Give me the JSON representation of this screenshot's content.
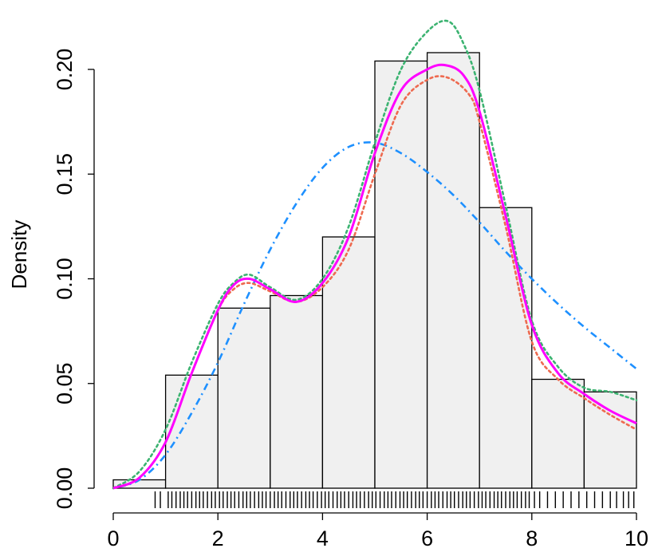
{
  "chart_data": {
    "type": "histogram",
    "title": "",
    "xlabel": "",
    "ylabel": "Density",
    "xlim": [
      0,
      10
    ],
    "ylim": [
      0,
      0.2
    ],
    "x_ticks": [
      0,
      2,
      4,
      6,
      8,
      10
    ],
    "x_tick_labels": [
      "0",
      "2",
      "4",
      "6",
      "8",
      "10"
    ],
    "y_ticks": [
      0,
      0.05,
      0.1,
      0.15,
      0.2
    ],
    "y_tick_labels": [
      "0.00",
      "0.05",
      "0.10",
      "0.15",
      "0.20"
    ],
    "bins": [
      {
        "x0": 0,
        "x1": 1,
        "density": 0.004
      },
      {
        "x0": 1,
        "x1": 2,
        "density": 0.054
      },
      {
        "x0": 2,
        "x1": 3,
        "density": 0.086
      },
      {
        "x0": 3,
        "x1": 4,
        "density": 0.092
      },
      {
        "x0": 4,
        "x1": 5,
        "density": 0.12
      },
      {
        "x0": 5,
        "x1": 6,
        "density": 0.204
      },
      {
        "x0": 6,
        "x1": 7,
        "density": 0.208
      },
      {
        "x0": 7,
        "x1": 8,
        "density": 0.134
      },
      {
        "x0": 8,
        "x1": 9,
        "density": 0.052
      },
      {
        "x0": 9,
        "x1": 10,
        "density": 0.046
      }
    ],
    "bar_fill": "#f0f0f0",
    "bar_stroke": "#000000",
    "series": [
      {
        "color": "#ff00ff",
        "dash": "solid",
        "x": [
          0,
          0.5,
          1,
          1.5,
          2,
          2.3,
          2.6,
          3.0,
          3.5,
          4.0,
          4.5,
          5.0,
          5.5,
          6.0,
          6.35,
          6.7,
          7.0,
          7.5,
          8.0,
          8.5,
          9.0,
          9.5,
          10
        ],
        "y": [
          0.0,
          0.005,
          0.022,
          0.055,
          0.085,
          0.097,
          0.1,
          0.095,
          0.089,
          0.098,
          0.12,
          0.16,
          0.19,
          0.2,
          0.202,
          0.197,
          0.18,
          0.13,
          0.078,
          0.055,
          0.045,
          0.037,
          0.031
        ]
      },
      {
        "color": "#ee6a50",
        "dash": "dotted",
        "x": [
          0,
          0.5,
          1,
          1.5,
          2,
          2.3,
          2.6,
          3.0,
          3.5,
          4.0,
          4.5,
          5.0,
          5.5,
          6.0,
          6.4,
          6.8,
          7.0,
          7.5,
          8.0,
          8.5,
          9.0,
          9.5,
          10
        ],
        "y": [
          0.0,
          0.005,
          0.022,
          0.055,
          0.085,
          0.095,
          0.098,
          0.094,
          0.089,
          0.096,
          0.114,
          0.15,
          0.183,
          0.195,
          0.196,
          0.188,
          0.175,
          0.125,
          0.07,
          0.052,
          0.043,
          0.035,
          0.028
        ]
      },
      {
        "color": "#3cb371",
        "dash": "dotted",
        "x": [
          0,
          0.5,
          1,
          1.5,
          2,
          2.3,
          2.6,
          3.0,
          3.5,
          4.0,
          4.5,
          5.0,
          5.5,
          6.0,
          6.4,
          6.7,
          7.0,
          7.5,
          8.0,
          8.5,
          9.0,
          9.5,
          10
        ],
        "y": [
          0.0,
          0.008,
          0.028,
          0.06,
          0.088,
          0.098,
          0.102,
          0.096,
          0.09,
          0.1,
          0.125,
          0.165,
          0.2,
          0.218,
          0.223,
          0.212,
          0.19,
          0.135,
          0.08,
          0.058,
          0.048,
          0.046,
          0.042
        ]
      },
      {
        "color": "#1e90ff",
        "dash": "dotdash",
        "x": [
          0,
          0.5,
          1,
          1.5,
          2,
          2.5,
          3,
          3.5,
          4,
          4.5,
          5,
          5.5,
          6,
          6.5,
          7,
          7.5,
          8,
          8.5,
          9,
          9.5,
          10
        ],
        "y": [
          0.0,
          0.004,
          0.016,
          0.036,
          0.06,
          0.088,
          0.114,
          0.136,
          0.153,
          0.163,
          0.165,
          0.16,
          0.151,
          0.14,
          0.127,
          0.113,
          0.1,
          0.088,
          0.077,
          0.067,
          0.057
        ]
      }
    ],
    "rug": [
      0.8,
      0.9,
      1.05,
      1.12,
      1.2,
      1.28,
      1.35,
      1.42,
      1.5,
      1.58,
      1.65,
      1.72,
      1.8,
      1.88,
      1.95,
      2.03,
      2.1,
      2.18,
      2.25,
      2.32,
      2.4,
      2.48,
      2.55,
      2.62,
      2.7,
      2.78,
      2.85,
      2.92,
      3.0,
      3.08,
      3.15,
      3.22,
      3.3,
      3.38,
      3.45,
      3.52,
      3.6,
      3.68,
      3.75,
      3.82,
      3.9,
      3.98,
      4.05,
      4.12,
      4.2,
      4.28,
      4.35,
      4.42,
      4.5,
      4.58,
      4.65,
      4.72,
      4.8,
      4.88,
      4.95,
      5.02,
      5.1,
      5.18,
      5.25,
      5.32,
      5.4,
      5.48,
      5.55,
      5.62,
      5.7,
      5.78,
      5.85,
      5.92,
      6.0,
      6.08,
      6.15,
      6.22,
      6.3,
      6.38,
      6.45,
      6.52,
      6.6,
      6.68,
      6.75,
      6.82,
      6.9,
      6.98,
      7.05,
      7.12,
      7.2,
      7.28,
      7.35,
      7.42,
      7.5,
      7.58,
      7.65,
      7.72,
      7.8,
      7.88,
      7.95,
      8.05,
      8.15,
      8.3,
      8.45,
      8.6,
      8.75,
      8.9,
      9.05,
      9.2,
      9.35,
      9.5,
      9.62,
      9.75,
      9.85,
      9.95
    ]
  }
}
